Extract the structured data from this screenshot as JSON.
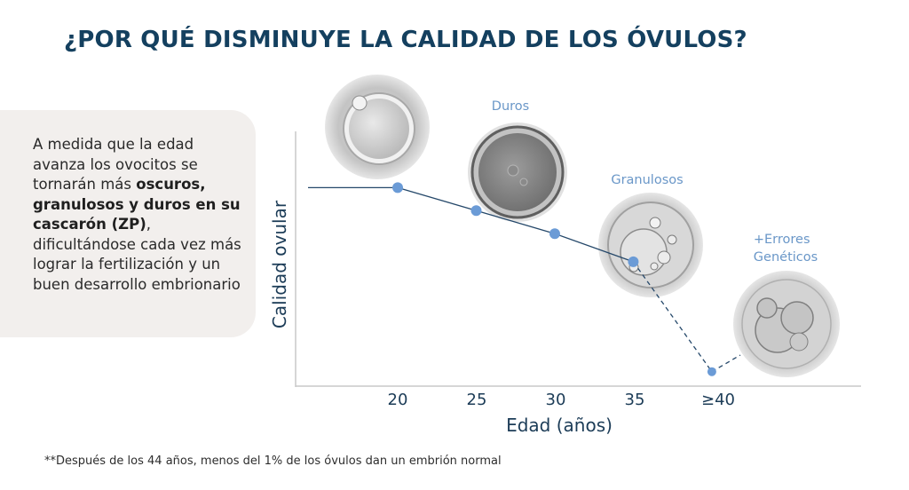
{
  "header": {
    "title": "¿POR QUÉ  DISMINUYE LA CALIDAD DE LOS ÓVULOS?"
  },
  "side": {
    "t1": "A medida que la edad avanza los ovocitos se tornarán más ",
    "b1": "oscuros, granulosos y duros en su cascarón (ZP)",
    "t2": ", dificultándose cada vez más lograr la fertilización y un buen desarrollo embrionario"
  },
  "footnote": "**Después de los 44 años, menos del 1% de los óvulos dan un embrión normal",
  "chart_data": {
    "type": "line",
    "title": "",
    "xlabel": "Edad (años)",
    "ylabel": "Calidad ovular",
    "categories": [
      "20",
      "25",
      "30",
      "35",
      "≥40"
    ],
    "series": [
      {
        "name": "Calidad ovular",
        "x": [
          20,
          25,
          30,
          35,
          40
        ],
        "values": [
          0.78,
          0.69,
          0.6,
          0.49,
          0.06
        ],
        "dashed_from_index": 3
      }
    ],
    "start_value": 0.78,
    "xlim": [
      13.5,
      49.5
    ],
    "ylim": [
      0,
      1
    ],
    "annotations": [
      {
        "text": "Duros"
      },
      {
        "text": "Granulosos"
      },
      {
        "text": "+Errores Genéticos"
      }
    ],
    "colors": {
      "line": "#25486a",
      "marker": "#6b9bd6",
      "text": "#1c3c57",
      "annotation": "#6a97c8"
    }
  }
}
